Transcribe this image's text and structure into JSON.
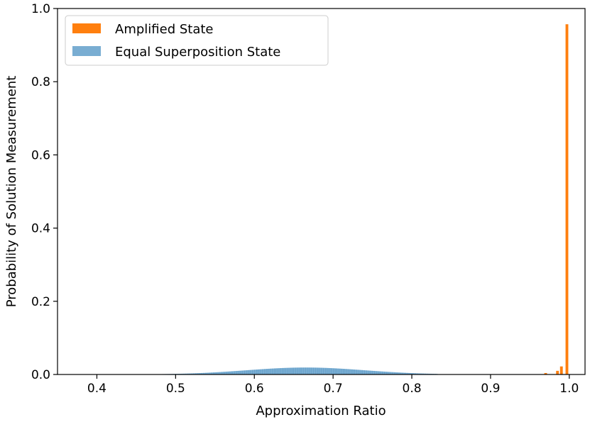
{
  "chart_data": {
    "type": "bar",
    "title": "",
    "xlabel": "Approximation Ratio",
    "ylabel": "Probability of Solution Measurement",
    "xlim": [
      0.35,
      1.02
    ],
    "ylim": [
      0.0,
      1.0
    ],
    "xticks": [
      "0.4",
      "0.5",
      "0.6",
      "0.7",
      "0.8",
      "0.9",
      "1.0"
    ],
    "yticks": [
      "0.0",
      "0.2",
      "0.4",
      "0.6",
      "0.8",
      "1.0"
    ],
    "grid": false,
    "legend_position": "top-left",
    "series": [
      {
        "name": "Amplified State",
        "color": "#ff7f0e",
        "bins": [
          {
            "x": 0.97,
            "y": 0.004
          },
          {
            "x": 0.985,
            "y": 0.01
          },
          {
            "x": 0.99,
            "y": 0.022
          },
          {
            "x": 0.997,
            "y": 0.957
          }
        ]
      },
      {
        "name": "Equal Superposition State",
        "color": "#1f77b4",
        "alpha": 0.6,
        "distribution": {
          "center": 0.665,
          "peak": 0.019,
          "spread": 0.075,
          "start": 0.4,
          "end": 0.83
        }
      }
    ]
  }
}
